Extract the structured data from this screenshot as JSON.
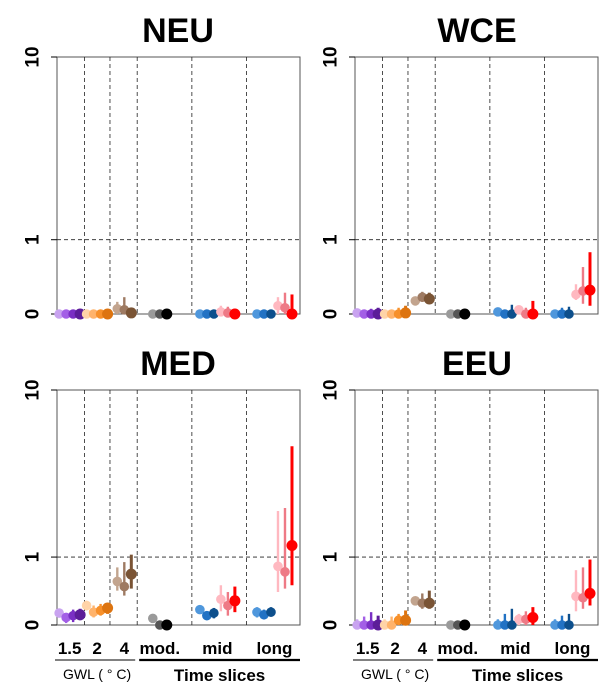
{
  "colors": {
    "dash": "#222222",
    "frame": "#555555"
  },
  "chart_data": {
    "type": "scatter",
    "y_scale": "log1p",
    "y_ticks": [
      "0",
      "1",
      "10"
    ],
    "x_categories": [
      {
        "label": "1.5",
        "items": [
          "#c9a3f0",
          "#a35fe6",
          "#7a2fc4",
          "#5c1d99"
        ]
      },
      {
        "label": "2",
        "items": [
          "#ffd3a8",
          "#ffb36b",
          "#f7902a",
          "#dd7410"
        ]
      },
      {
        "label": "4",
        "items": [
          "#c2a48e",
          "#9e7a62",
          "#7a5435"
        ]
      },
      {
        "label": "mod.",
        "items": [
          "#9a9a9a",
          "#555555",
          "#000000"
        ]
      },
      {
        "label": "mid",
        "items": [
          "#4f97dc",
          "#2272c4",
          "#0d4f8c",
          "#ffb8c0",
          "#ee7a86",
          "#ff0000"
        ]
      },
      {
        "label": "long",
        "items": [
          "#4f97dc",
          "#2272c4",
          "#0d4f8c",
          "#ffb8c0",
          "#ee7a86",
          "#ff0000"
        ]
      }
    ],
    "x_groups": [
      {
        "label": "GWL ( ° C)",
        "categories": [
          "1.5",
          "2",
          "4"
        ]
      },
      {
        "label": "Time slices",
        "categories": [
          "mod.",
          "mid",
          "long"
        ]
      }
    ],
    "panels": [
      {
        "title": "NEU",
        "series": [
          [
            [
              0.0,
              0.0,
              0.02
            ],
            [
              0.0,
              0.0,
              0.02
            ],
            [
              0.0,
              0.0,
              0.02
            ],
            [
              0.0,
              0.0,
              0.02
            ]
          ],
          [
            [
              0.0,
              0.0,
              0.02
            ],
            [
              0.0,
              0.0,
              0.02
            ],
            [
              0.0,
              0.0,
              0.02
            ],
            [
              0.0,
              0.0,
              0.02
            ]
          ],
          [
            [
              0.05,
              0.0,
              0.12
            ],
            [
              0.04,
              0.0,
              0.17
            ],
            [
              0.01,
              0.0,
              0.05
            ]
          ],
          [
            [
              0.0,
              0.0,
              0.02
            ],
            [
              0.0,
              0.0,
              0.02
            ],
            [
              0.0,
              0.0,
              0.02
            ]
          ],
          [
            [
              0.0,
              0.0,
              0.02
            ],
            [
              0.0,
              0.0,
              0.02
            ],
            [
              0.0,
              0.0,
              0.02
            ],
            [
              0.02,
              0.0,
              0.08
            ],
            [
              0.01,
              0.0,
              0.07
            ],
            [
              0.0,
              0.0,
              0.05
            ]
          ],
          [
            [
              0.0,
              0.0,
              0.02
            ],
            [
              0.0,
              0.0,
              0.02
            ],
            [
              0.0,
              0.0,
              0.02
            ],
            [
              0.08,
              0.0,
              0.17
            ],
            [
              0.06,
              0.0,
              0.22
            ],
            [
              0.0,
              0.0,
              0.2
            ]
          ]
        ]
      },
      {
        "title": "WCE",
        "series": [
          [
            [
              0.01,
              0.0,
              0.04
            ],
            [
              0.0,
              0.0,
              0.03
            ],
            [
              0.0,
              0.0,
              0.05
            ],
            [
              0.0,
              0.0,
              0.06
            ]
          ],
          [
            [
              0.0,
              0.0,
              0.03
            ],
            [
              0.0,
              0.0,
              0.04
            ],
            [
              0.0,
              0.0,
              0.06
            ],
            [
              0.01,
              0.0,
              0.08
            ]
          ],
          [
            [
              0.13,
              0.1,
              0.16
            ],
            [
              0.17,
              0.12,
              0.23
            ],
            [
              0.15,
              0.1,
              0.22
            ]
          ],
          [
            [
              0.0,
              0.0,
              0.02
            ],
            [
              0.0,
              0.0,
              0.02
            ],
            [
              0.0,
              0.0,
              0.02
            ]
          ],
          [
            [
              0.02,
              0.0,
              0.05
            ],
            [
              0.0,
              0.0,
              0.04
            ],
            [
              0.0,
              0.0,
              0.09
            ],
            [
              0.04,
              0.0,
              0.08
            ],
            [
              0.0,
              0.0,
              0.06
            ],
            [
              0.0,
              0.0,
              0.13
            ]
          ],
          [
            [
              0.0,
              0.0,
              0.04
            ],
            [
              0.0,
              0.0,
              0.06
            ],
            [
              0.0,
              0.0,
              0.07
            ],
            [
              0.2,
              0.14,
              0.32
            ],
            [
              0.24,
              0.1,
              0.55
            ],
            [
              0.25,
              0.08,
              0.78
            ]
          ]
        ]
      },
      {
        "title": "MED",
        "series": [
          [
            [
              0.13,
              0.08,
              0.18
            ],
            [
              0.08,
              0.02,
              0.13
            ],
            [
              0.1,
              0.03,
              0.17
            ],
            [
              0.11,
              0.05,
              0.18
            ]
          ],
          [
            [
              0.22,
              0.16,
              0.28
            ],
            [
              0.14,
              0.08,
              0.22
            ],
            [
              0.16,
              0.1,
              0.24
            ],
            [
              0.19,
              0.12,
              0.25
            ]
          ],
          [
            [
              0.56,
              0.42,
              0.8
            ],
            [
              0.48,
              0.35,
              0.9
            ],
            [
              0.68,
              0.45,
              1.05
            ]
          ],
          [
            [
              0.07,
              0.04,
              0.1
            ],
            [
              0.0,
              0.0,
              0.03
            ],
            [
              0.0,
              0.0,
              0.02
            ]
          ],
          [
            [
              0.17,
              0.12,
              0.21
            ],
            [
              0.1,
              0.06,
              0.15
            ],
            [
              0.13,
              0.07,
              0.19
            ],
            [
              0.3,
              0.15,
              0.5
            ],
            [
              0.22,
              0.1,
              0.4
            ],
            [
              0.28,
              0.14,
              0.48
            ]
          ],
          [
            [
              0.14,
              0.08,
              0.2
            ],
            [
              0.11,
              0.06,
              0.17
            ],
            [
              0.14,
              0.09,
              0.2
            ],
            [
              0.82,
              0.4,
              2.2
            ],
            [
              0.72,
              0.45,
              2.3
            ],
            [
              1.25,
              0.5,
              5.2
            ]
          ]
        ]
      },
      {
        "title": "EEU",
        "series": [
          [
            [
              0.0,
              0.0,
              0.06
            ],
            [
              0.0,
              0.0,
              0.09
            ],
            [
              0.0,
              0.0,
              0.14
            ],
            [
              0.0,
              0.0,
              0.1
            ]
          ],
          [
            [
              0.0,
              0.0,
              0.06
            ],
            [
              0.0,
              0.0,
              0.09
            ],
            [
              0.05,
              0.0,
              0.12
            ],
            [
              0.05,
              0.0,
              0.16
            ]
          ],
          [
            [
              0.28,
              0.22,
              0.33
            ],
            [
              0.25,
              0.18,
              0.38
            ],
            [
              0.25,
              0.18,
              0.42
            ]
          ],
          [
            [
              0.0,
              0.0,
              0.02
            ],
            [
              0.0,
              0.0,
              0.02
            ],
            [
              0.0,
              0.0,
              0.02
            ]
          ],
          [
            [
              0.0,
              0.0,
              0.06
            ],
            [
              0.0,
              0.0,
              0.12
            ],
            [
              0.0,
              0.0,
              0.18
            ],
            [
              0.06,
              0.0,
              0.12
            ],
            [
              0.06,
              0.0,
              0.15
            ],
            [
              0.08,
              0.0,
              0.2
            ]
          ],
          [
            [
              0.0,
              0.0,
              0.06
            ],
            [
              0.0,
              0.0,
              0.1
            ],
            [
              0.0,
              0.0,
              0.12
            ],
            [
              0.34,
              0.15,
              0.75
            ],
            [
              0.32,
              0.18,
              0.8
            ],
            [
              0.38,
              0.22,
              0.95
            ]
          ]
        ]
      }
    ]
  }
}
